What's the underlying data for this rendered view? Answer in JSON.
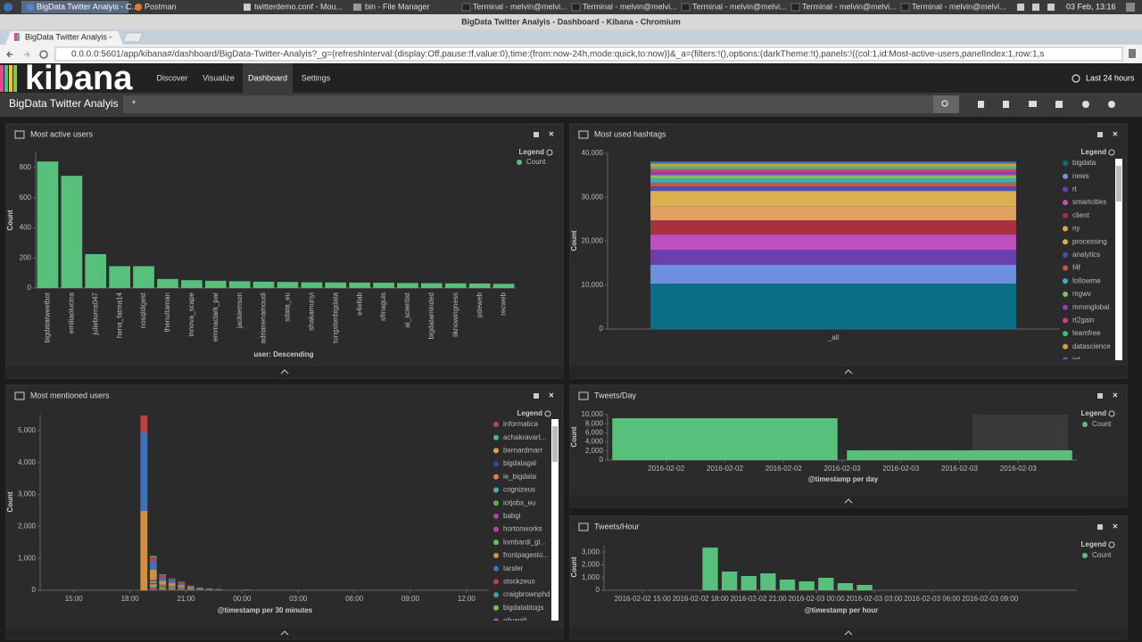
{
  "desktop": {
    "windows": [
      "BigData Twitter Analyis - C...",
      "Postman",
      "twitterdemo.conf - Mou...",
      "bin - File Manager",
      "Terminal - melvin@melvi...",
      "Terminal - melvin@melvi...",
      "Terminal - melvin@melvi...",
      "Terminal - melvin@melvi...",
      "Terminal - melvin@melvi..."
    ],
    "clock": "03 Feb, 13:16"
  },
  "browser": {
    "window_title": "BigData Twitter Analyis - Dashboard - Kibana - Chromium",
    "tab": "BigData Twitter Analyis -",
    "url": "0.0.0.0:5601/app/kibana#/dashboard/BigData-Twitter-Analyis?_g=(refreshInterval:(display:Off,pause:!f,value:0),time:(from:now-24h,mode:quick,to:now))&_a=(filters:!(),options:(darkTheme:!t),panels:!((col:1,id:Most-active-users,panelIndex:1,row:1,s"
  },
  "kibana": {
    "logo": "kibana",
    "nav": [
      "Discover",
      "Visualize",
      "Dashboard",
      "Settings"
    ],
    "time_range": "Last 24 hours",
    "dashboard_title": "BigData Twitter Analyis",
    "query": "*"
  },
  "chart_data": [
    {
      "type": "bar",
      "title": "Most active users",
      "legend_title": "Legend",
      "xlabel": "user: Descending",
      "ylabel": "Count",
      "categories": [
        "bigdatatweetbot",
        "emiliaolucina",
        "julieburns047",
        "hena_fatma14",
        "nosqldigest",
        "thenuttaman",
        "innova_scape",
        "emmaclark_par",
        "jackiemson",
        "adrianenamoudi",
        "sdata_eu",
        "shakamunyi",
        "tungstenbigdata",
        "e4ellab",
        "sfmaguis",
        "ai_scientist",
        "bigdataminded",
        "iiknowingness",
        "pdeweb",
        "recweb"
      ],
      "series": [
        {
          "name": "Count",
          "color": "#57c17b",
          "values": [
            840,
            745,
            225,
            145,
            145,
            60,
            52,
            48,
            45,
            42,
            40,
            38,
            37,
            36,
            35,
            33,
            32,
            31,
            30,
            28
          ]
        }
      ],
      "ylim": [
        0,
        900
      ],
      "yticks": [
        0,
        200,
        400,
        600,
        800
      ]
    },
    {
      "type": "bar",
      "stacked": true,
      "title": "Most used hashtags",
      "legend_title": "Legend",
      "ylabel": "Count",
      "categories": [
        "_all"
      ],
      "series": [
        {
          "name": "bigdata",
          "color": "#0a6e87",
          "values": [
            10350
          ]
        },
        {
          "name": "news",
          "color": "#6f8fe0",
          "values": [
            4300
          ]
        },
        {
          "name": "rt",
          "color": "#6a3fb0",
          "values": [
            3400
          ]
        },
        {
          "name": "smartcities",
          "color": "#c050c0",
          "values": [
            3450
          ]
        },
        {
          "name": "client",
          "color": "#a83040",
          "values": [
            3250
          ]
        },
        {
          "name": "ny",
          "color": "#e0a060",
          "values": [
            3250
          ]
        },
        {
          "name": "processing",
          "color": "#d8b050",
          "values": [
            3450
          ]
        },
        {
          "name": "analytics",
          "color": "#4a50b0",
          "values": [
            1000
          ]
        },
        {
          "name": "f4f",
          "color": "#c05a40",
          "values": [
            900
          ]
        },
        {
          "name": "followme",
          "color": "#40b0c0",
          "values": [
            900
          ]
        },
        {
          "name": "mgwv",
          "color": "#80c060",
          "values": [
            800
          ]
        },
        {
          "name": "mmmglobal",
          "color": "#9040b0",
          "values": [
            700
          ]
        },
        {
          "name": "rt2gain",
          "color": "#d04080",
          "values": [
            700
          ]
        },
        {
          "name": "teamfree",
          "color": "#40c070",
          "values": [
            600
          ]
        },
        {
          "name": "datascience",
          "color": "#d0a040",
          "values": [
            600
          ]
        },
        {
          "name": "iot",
          "color": "#4070c0",
          "values": [
            500
          ]
        }
      ],
      "ylim": [
        0,
        40000
      ],
      "yticks": [
        0,
        {
          "value": 10000,
          "label": "10,000"
        },
        {
          "value": 20000,
          "label": "20,000"
        },
        {
          "value": 30000,
          "label": "30,000"
        },
        {
          "value": 40000,
          "label": "40,000"
        }
      ]
    },
    {
      "type": "bar",
      "stacked": true,
      "title": "Most mentioned users",
      "legend_title": "Legend",
      "xlabel": "@timestamp per 30 minutes",
      "ylabel": "Count",
      "x": [
        18.5,
        19,
        19.5,
        20,
        20.5,
        21,
        21.5,
        22,
        22.5,
        23,
        24,
        25
      ],
      "series": [
        {
          "name": "informatica",
          "color": "#c04060",
          "values": [
            0,
            90,
            40,
            30,
            20,
            10,
            10,
            10,
            10,
            10,
            0,
            10
          ]
        },
        {
          "name": "achakravart...",
          "color": "#40c080",
          "values": [
            0,
            60,
            30,
            20,
            20,
            10,
            10,
            0,
            10,
            0,
            10,
            0
          ]
        },
        {
          "name": "bernardmarr",
          "color": "#e0a040",
          "values": [
            0,
            40,
            20,
            20,
            10,
            10,
            0,
            10,
            0,
            0,
            0,
            0
          ]
        },
        {
          "name": "bigdatagal",
          "color": "#4040b0",
          "values": [
            0,
            30,
            20,
            10,
            10,
            0,
            10,
            0,
            0,
            10,
            0,
            0
          ]
        },
        {
          "name": "ie_bigdata",
          "color": "#e08040",
          "values": [
            0,
            30,
            20,
            10,
            10,
            10,
            0,
            0,
            0,
            0,
            0,
            0
          ]
        },
        {
          "name": "cognizeus",
          "color": "#40b0c0",
          "values": [
            0,
            20,
            10,
            10,
            10,
            0,
            10,
            10,
            0,
            0,
            0,
            0
          ]
        },
        {
          "name": "iotjobs_eu",
          "color": "#60b040",
          "values": [
            0,
            20,
            10,
            10,
            0,
            10,
            0,
            10,
            10,
            0,
            10,
            0
          ]
        },
        {
          "name": "babgi",
          "color": "#b040b0",
          "values": [
            0,
            20,
            10,
            0,
            10,
            0,
            0,
            0,
            0,
            0,
            0,
            0
          ]
        },
        {
          "name": "hortonworks",
          "color": "#c040a0",
          "values": [
            0,
            20,
            10,
            10,
            0,
            10,
            0,
            0,
            0,
            0,
            0,
            0
          ]
        },
        {
          "name": "lombardi_gl...",
          "color": "#60c060",
          "values": [
            0,
            20,
            10,
            10,
            10,
            0,
            0,
            0,
            0,
            0,
            0,
            0
          ]
        },
        {
          "name": "frontpagesto...",
          "color": "#d09040",
          "values": [
            2490,
            300,
            120,
            100,
            60,
            40,
            20,
            0,
            0,
            0,
            0,
            0
          ]
        },
        {
          "name": "tarsler",
          "color": "#4070c0",
          "values": [
            2450,
            260,
            110,
            90,
            60,
            30,
            20,
            20,
            10,
            0,
            0,
            0
          ]
        },
        {
          "name": "stockzeus",
          "color": "#c04040",
          "values": [
            530,
            120,
            60,
            40,
            40,
            20,
            10,
            0,
            0,
            0,
            0,
            0
          ]
        },
        {
          "name": "craigbrownphd",
          "color": "#40a0a0",
          "values": [
            0,
            20,
            10,
            10,
            0,
            0,
            0,
            0,
            0,
            0,
            0,
            0
          ]
        },
        {
          "name": "bigdatablogs",
          "color": "#80c040",
          "values": [
            0,
            20,
            10,
            0,
            10,
            0,
            0,
            0,
            0,
            0,
            0,
            0
          ]
        },
        {
          "name": "eliyagill",
          "color": "#a060c0",
          "values": [
            0,
            10,
            10,
            0,
            0,
            0,
            0,
            0,
            0,
            0,
            0,
            0
          ]
        }
      ],
      "xlim": [
        13.2,
        37.2
      ],
      "xticks": [
        {
          "value": 15,
          "label": "15:00"
        },
        {
          "value": 18,
          "label": "18:00"
        },
        {
          "value": 21,
          "label": "21:00"
        },
        {
          "value": 24,
          "label": "00:00"
        },
        {
          "value": 27,
          "label": "03:00"
        },
        {
          "value": 30,
          "label": "06:00"
        },
        {
          "value": 33,
          "label": "09:00"
        },
        {
          "value": 36,
          "label": "12:00"
        }
      ],
      "ylim": [
        0,
        5500
      ],
      "yticks": [
        0,
        {
          "value": 1000,
          "label": "1,000"
        },
        {
          "value": 2000,
          "label": "2,000"
        },
        {
          "value": 3000,
          "label": "3,000"
        },
        {
          "value": 4000,
          "label": "4,000"
        },
        {
          "value": 5000,
          "label": "5,000"
        }
      ]
    },
    {
      "type": "bar",
      "title": "Tweets/Day",
      "legend_title": "Legend",
      "xlabel": "@timestamp per day",
      "ylabel": "Count",
      "x": [
        "2016-02-02",
        "2016-02-03"
      ],
      "series": [
        {
          "name": "Count",
          "color": "#57c17b",
          "values": [
            9200,
            2150
          ]
        }
      ],
      "xlim": [
        "2016-02-02 00:00",
        "2016-02-04 00:00"
      ],
      "xticks": [
        {
          "value": "2016-02-02 06:00",
          "label": "2016-02-02"
        },
        {
          "value": "2016-02-02 12:00",
          "label": "2016-02-02"
        },
        {
          "value": "2016-02-02 18:00",
          "label": "2016-02-02"
        },
        {
          "value": "2016-02-03 00:00",
          "label": "2016-02-03"
        },
        {
          "value": "2016-02-03 06:00",
          "label": "2016-02-03"
        },
        {
          "value": "2016-02-03 12:00",
          "label": "2016-02-03"
        },
        {
          "value": "2016-02-03 18:00",
          "label": "2016-02-03"
        }
      ],
      "ylim": [
        0,
        10000
      ],
      "yticks": [
        0,
        {
          "value": 2000,
          "label": "2,000"
        },
        {
          "value": 4000,
          "label": "4,000"
        },
        {
          "value": 6000,
          "label": "6,000"
        },
        {
          "value": 8000,
          "label": "8,000"
        },
        {
          "value": 10000,
          "label": "10,000"
        }
      ]
    },
    {
      "type": "bar",
      "title": "Tweets/Hour",
      "legend_title": "Legend",
      "xlabel": "@timestamp per hour",
      "ylabel": "Count",
      "x": [
        "2016-02-02 18:00",
        "2016-02-02 19:00",
        "2016-02-02 20:00",
        "2016-02-02 21:00",
        "2016-02-02 22:00",
        "2016-02-02 23:00",
        "2016-02-03 00:00",
        "2016-02-03 01:00",
        "2016-02-03 02:00"
      ],
      "series": [
        {
          "name": "Count",
          "color": "#57c17b",
          "values": [
            3350,
            1470,
            1120,
            1330,
            840,
            700,
            980,
            560,
            420
          ]
        }
      ],
      "xlim": [
        "2016-02-02 13:00",
        "2016-02-03 13:30"
      ],
      "xticks": [
        "2016-02-02 15:00",
        "2016-02-02 18:00",
        "2016-02-02 21:00",
        "2016-02-03 00:00",
        "2016-02-03 03:00",
        "2016-02-03 06:00",
        "2016-02-03 09:00"
      ],
      "ylim": [
        0,
        3500
      ],
      "yticks": [
        0,
        {
          "value": 1000,
          "label": "1,000"
        },
        {
          "value": 2000,
          "label": "2,000"
        },
        {
          "value": 3000,
          "label": "3,000"
        }
      ]
    }
  ]
}
